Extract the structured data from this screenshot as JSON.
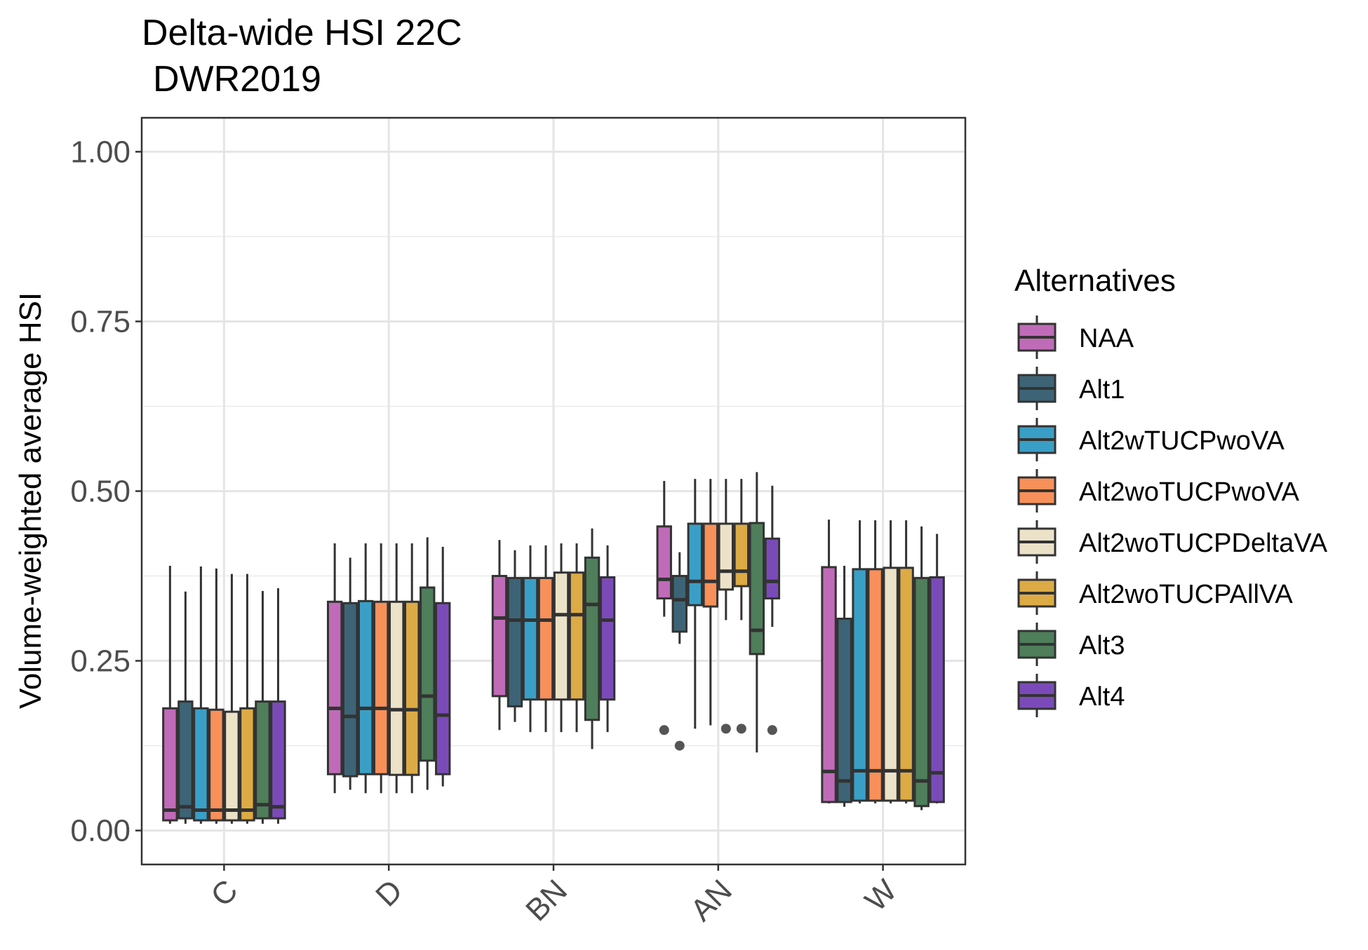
{
  "chart_data": {
    "type": "boxplot",
    "title": "Delta-wide HSI 22C",
    "subtitle": "DWR2019",
    "xlabel": "",
    "ylabel": "Volume-weighted average HSI",
    "ylim": [
      -0.05,
      1.05
    ],
    "yticks": [
      "0.00",
      "0.25",
      "0.50",
      "0.75",
      "1.00"
    ],
    "ytick_values": [
      0,
      0.25,
      0.5,
      0.75,
      1.0
    ],
    "grid": true,
    "legend_position": "right",
    "legend_title": "Alternatives",
    "categories": [
      "C",
      "D",
      "BN",
      "AN",
      "W"
    ],
    "series": [
      {
        "name": "NAA",
        "color": "#C06BB8",
        "boxes": [
          {
            "min": 0.01,
            "q1": 0.015,
            "median": 0.03,
            "q3": 0.18,
            "max": 0.39
          },
          {
            "min": 0.055,
            "q1": 0.083,
            "median": 0.18,
            "q3": 0.337,
            "max": 0.423
          },
          {
            "min": 0.148,
            "q1": 0.198,
            "median": 0.313,
            "q3": 0.375,
            "max": 0.428
          },
          {
            "min": 0.315,
            "q1": 0.342,
            "median": 0.37,
            "q3": 0.448,
            "max": 0.515,
            "outliers": [
              0.148
            ]
          },
          {
            "min": 0.04,
            "q1": 0.042,
            "median": 0.087,
            "q3": 0.388,
            "max": 0.458
          }
        ]
      },
      {
        "name": "Alt1",
        "color": "#3D6476",
        "boxes": [
          {
            "min": 0.01,
            "q1": 0.018,
            "median": 0.035,
            "q3": 0.19,
            "max": 0.352
          },
          {
            "min": 0.06,
            "q1": 0.08,
            "median": 0.168,
            "q3": 0.335,
            "max": 0.402
          },
          {
            "min": 0.16,
            "q1": 0.183,
            "median": 0.31,
            "q3": 0.372,
            "max": 0.413
          },
          {
            "min": 0.275,
            "q1": 0.293,
            "median": 0.34,
            "q3": 0.375,
            "max": 0.41,
            "outliers": [
              0.125
            ]
          },
          {
            "min": 0.035,
            "q1": 0.042,
            "median": 0.073,
            "q3": 0.312,
            "max": 0.39
          }
        ]
      },
      {
        "name": "Alt2wTUCPwoVA",
        "color": "#3A9FC6",
        "boxes": [
          {
            "min": 0.01,
            "q1": 0.015,
            "median": 0.03,
            "q3": 0.18,
            "max": 0.389
          },
          {
            "min": 0.055,
            "q1": 0.083,
            "median": 0.18,
            "q3": 0.338,
            "max": 0.423
          },
          {
            "min": 0.145,
            "q1": 0.193,
            "median": 0.31,
            "q3": 0.372,
            "max": 0.42
          },
          {
            "min": 0.15,
            "q1": 0.332,
            "median": 0.367,
            "q3": 0.452,
            "max": 0.518
          },
          {
            "min": 0.04,
            "q1": 0.044,
            "median": 0.088,
            "q3": 0.385,
            "max": 0.457
          }
        ]
      },
      {
        "name": "Alt2woTUCPwoVA",
        "color": "#F8905A",
        "boxes": [
          {
            "min": 0.01,
            "q1": 0.015,
            "median": 0.03,
            "q3": 0.178,
            "max": 0.386
          },
          {
            "min": 0.055,
            "q1": 0.083,
            "median": 0.18,
            "q3": 0.337,
            "max": 0.423
          },
          {
            "min": 0.145,
            "q1": 0.193,
            "median": 0.31,
            "q3": 0.372,
            "max": 0.42
          },
          {
            "min": 0.155,
            "q1": 0.33,
            "median": 0.367,
            "q3": 0.452,
            "max": 0.518
          },
          {
            "min": 0.04,
            "q1": 0.044,
            "median": 0.088,
            "q3": 0.385,
            "max": 0.457
          }
        ]
      },
      {
        "name": "Alt2woTUCPDeltaVA",
        "color": "#ECE2C8",
        "boxes": [
          {
            "min": 0.01,
            "q1": 0.015,
            "median": 0.03,
            "q3": 0.175,
            "max": 0.378
          },
          {
            "min": 0.055,
            "q1": 0.082,
            "median": 0.178,
            "q3": 0.337,
            "max": 0.423
          },
          {
            "min": 0.145,
            "q1": 0.193,
            "median": 0.318,
            "q3": 0.38,
            "max": 0.423
          },
          {
            "min": 0.31,
            "q1": 0.355,
            "median": 0.382,
            "q3": 0.452,
            "max": 0.518,
            "outliers": [
              0.15
            ]
          },
          {
            "min": 0.04,
            "q1": 0.044,
            "median": 0.088,
            "q3": 0.387,
            "max": 0.457
          }
        ]
      },
      {
        "name": "Alt2woTUCPAllVA",
        "color": "#DDAB45",
        "boxes": [
          {
            "min": 0.01,
            "q1": 0.015,
            "median": 0.03,
            "q3": 0.18,
            "max": 0.378
          },
          {
            "min": 0.055,
            "q1": 0.082,
            "median": 0.178,
            "q3": 0.337,
            "max": 0.423
          },
          {
            "min": 0.145,
            "q1": 0.193,
            "median": 0.318,
            "q3": 0.38,
            "max": 0.423
          },
          {
            "min": 0.31,
            "q1": 0.36,
            "median": 0.382,
            "q3": 0.452,
            "max": 0.518,
            "outliers": [
              0.15
            ]
          },
          {
            "min": 0.04,
            "q1": 0.044,
            "median": 0.088,
            "q3": 0.387,
            "max": 0.457
          }
        ]
      },
      {
        "name": "Alt3",
        "color": "#4E7E5A",
        "boxes": [
          {
            "min": 0.01,
            "q1": 0.018,
            "median": 0.038,
            "q3": 0.19,
            "max": 0.353
          },
          {
            "min": 0.06,
            "q1": 0.103,
            "median": 0.198,
            "q3": 0.358,
            "max": 0.432
          },
          {
            "min": 0.12,
            "q1": 0.163,
            "median": 0.333,
            "q3": 0.402,
            "max": 0.445
          },
          {
            "min": 0.115,
            "q1": 0.26,
            "median": 0.295,
            "q3": 0.453,
            "max": 0.528
          },
          {
            "min": 0.03,
            "q1": 0.036,
            "median": 0.073,
            "q3": 0.372,
            "max": 0.448
          }
        ]
      },
      {
        "name": "Alt4",
        "color": "#7A4BB8",
        "boxes": [
          {
            "min": 0.01,
            "q1": 0.018,
            "median": 0.035,
            "q3": 0.19,
            "max": 0.357
          },
          {
            "min": 0.065,
            "q1": 0.083,
            "median": 0.17,
            "q3": 0.335,
            "max": 0.418
          },
          {
            "min": 0.145,
            "q1": 0.193,
            "median": 0.31,
            "q3": 0.373,
            "max": 0.42
          },
          {
            "min": 0.3,
            "q1": 0.342,
            "median": 0.367,
            "q3": 0.43,
            "max": 0.508,
            "outliers": [
              0.148
            ]
          },
          {
            "min": 0.04,
            "q1": 0.042,
            "median": 0.085,
            "q3": 0.373,
            "max": 0.437
          }
        ]
      }
    ]
  }
}
